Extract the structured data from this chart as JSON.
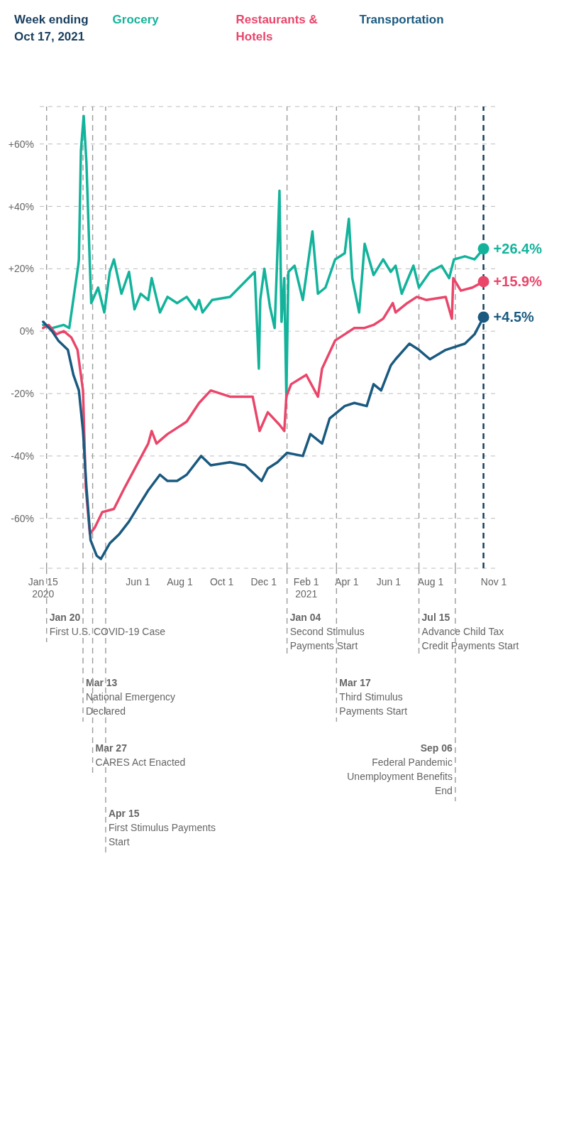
{
  "chart_data": {
    "type": "line",
    "annotations": [
      "Week ending\nOct 17, 2021"
    ],
    "xlim": [
      "2020-01-10",
      "2021-11-05"
    ],
    "xticks": [
      {
        "value": "2020-01-15",
        "label": "Jan 15\n2020"
      },
      {
        "value": "2020-06-01",
        "label": "Jun 1"
      },
      {
        "value": "2020-08-01",
        "label": "Aug 1"
      },
      {
        "value": "2020-10-01",
        "label": "Oct 1"
      },
      {
        "value": "2020-12-01",
        "label": "Dec 1"
      },
      {
        "value": "2021-02-01",
        "label": "Feb 1\n2021"
      },
      {
        "value": "2021-04-01",
        "label": "Apr 1"
      },
      {
        "value": "2021-06-01",
        "label": "Jun 1"
      },
      {
        "value": "2021-08-01",
        "label": "Aug 1"
      },
      {
        "value": "2021-11-01",
        "label": "Nov 1"
      }
    ],
    "ylim": [
      -76,
      72
    ],
    "yticks": [
      {
        "value": 60,
        "label": "+60%"
      },
      {
        "value": 40,
        "label": "+40%"
      },
      {
        "value": 20,
        "label": "+20%"
      },
      {
        "value": 0,
        "label": "0%"
      },
      {
        "value": -20,
        "label": "-20%"
      },
      {
        "value": -40,
        "label": "-40%"
      },
      {
        "value": -60,
        "label": "-60%"
      }
    ],
    "grid": "y",
    "series": [
      {
        "name": "Grocery",
        "color": "#13b39b",
        "x": [
          "2020-01-15",
          "2020-01-28",
          "2020-02-14",
          "2020-02-22",
          "2020-03-06",
          "2020-03-07",
          "2020-03-10",
          "2020-03-14",
          "2020-03-18",
          "2020-03-23",
          "2020-03-25",
          "2020-04-04",
          "2020-04-13",
          "2020-04-21",
          "2020-04-27",
          "2020-05-08",
          "2020-05-19",
          "2020-05-27",
          "2020-06-05",
          "2020-06-16",
          "2020-06-21",
          "2020-07-03",
          "2020-07-14",
          "2020-07-28",
          "2020-08-11",
          "2020-08-24",
          "2020-08-29",
          "2020-09-03",
          "2020-09-17",
          "2020-10-13",
          "2020-11-09",
          "2020-11-18",
          "2020-11-24",
          "2020-11-26",
          "2020-12-02",
          "2020-12-10",
          "2020-12-17",
          "2020-12-20",
          "2020-12-24",
          "2020-12-27",
          "2020-12-31",
          "2021-01-03",
          "2021-01-06",
          "2021-01-15",
          "2021-01-27",
          "2021-02-10",
          "2021-02-18",
          "2021-03-01",
          "2021-03-15",
          "2021-03-29",
          "2021-04-04",
          "2021-04-09",
          "2021-04-19",
          "2021-04-27",
          "2021-05-10",
          "2021-05-24",
          "2021-06-04",
          "2021-06-11",
          "2021-06-20",
          "2021-07-07",
          "2021-07-15",
          "2021-07-31",
          "2021-08-17",
          "2021-08-28",
          "2021-09-04",
          "2021-09-20",
          "2021-10-04",
          "2021-10-17"
        ],
        "values": [
          2,
          1,
          2,
          1,
          21,
          23,
          58,
          69,
          54,
          21,
          9,
          14,
          6,
          19,
          23,
          12,
          19,
          7,
          12,
          10,
          17,
          6,
          11,
          9,
          11,
          7,
          10,
          6,
          10,
          11,
          17,
          19,
          -12,
          10,
          20,
          8,
          1,
          19,
          45,
          3,
          17,
          -21,
          19,
          21,
          10,
          32,
          12,
          14,
          23,
          25,
          36,
          17,
          6,
          28,
          18,
          23,
          19,
          21,
          12,
          21,
          14,
          19,
          21,
          17,
          23,
          24,
          23,
          26.4
        ],
        "value_labels": [
          null,
          null,
          null,
          null,
          null,
          null,
          null,
          null,
          null,
          null,
          null,
          null,
          null,
          null,
          null,
          null,
          null,
          null,
          null,
          null,
          null,
          null,
          null,
          null,
          null,
          null,
          null,
          null,
          null,
          null,
          null,
          null,
          null,
          null,
          null,
          null,
          null,
          null,
          null,
          null,
          null,
          null,
          null,
          null,
          null,
          null,
          null,
          null,
          null,
          null,
          null,
          null,
          null,
          null,
          null,
          null,
          null,
          null,
          null,
          null,
          null,
          null,
          null,
          null,
          null,
          null,
          null,
          "+26.4%"
        ]
      },
      {
        "name": "Restaurants & Hotels",
        "color": "#e9466a",
        "x": [
          "2020-01-15",
          "2020-01-23",
          "2020-02-03",
          "2020-02-14",
          "2020-02-25",
          "2020-03-05",
          "2020-03-13",
          "2020-03-17",
          "2020-03-23",
          "2020-03-30",
          "2020-04-10",
          "2020-04-27",
          "2020-05-13",
          "2020-05-30",
          "2020-06-16",
          "2020-06-21",
          "2020-06-28",
          "2020-07-14",
          "2020-08-11",
          "2020-08-29",
          "2020-09-15",
          "2020-10-13",
          "2020-11-15",
          "2020-11-25",
          "2020-12-07",
          "2020-12-24",
          "2020-12-31",
          "2021-01-03",
          "2021-01-10",
          "2021-02-01",
          "2021-02-18",
          "2021-02-24",
          "2021-03-15",
          "2021-03-29",
          "2021-04-12",
          "2021-04-26",
          "2021-05-10",
          "2021-05-24",
          "2021-06-07",
          "2021-06-11",
          "2021-06-28",
          "2021-07-12",
          "2021-07-26",
          "2021-08-23",
          "2021-09-01",
          "2021-09-03",
          "2021-09-14",
          "2021-10-01",
          "2021-10-17"
        ],
        "values": [
          1,
          2,
          -1,
          0,
          -2,
          -6,
          -19,
          -50,
          -65,
          -63,
          -58,
          -57,
          -50,
          -43,
          -36,
          -32,
          -36,
          -33,
          -29,
          -23,
          -19,
          -21,
          -21,
          -32,
          -26,
          -30,
          -32,
          -21,
          -17,
          -14,
          -21,
          -12,
          -3,
          -1,
          1,
          1,
          2,
          4,
          9,
          6,
          9,
          11,
          10,
          11,
          4,
          17,
          13,
          14,
          15.9
        ],
        "value_labels": [
          null,
          null,
          null,
          null,
          null,
          null,
          null,
          null,
          null,
          null,
          null,
          null,
          null,
          null,
          null,
          null,
          null,
          null,
          null,
          null,
          null,
          null,
          null,
          null,
          null,
          null,
          null,
          null,
          null,
          null,
          null,
          null,
          null,
          null,
          null,
          null,
          null,
          null,
          null,
          null,
          null,
          null,
          null,
          null,
          null,
          null,
          null,
          null,
          "+15.9%"
        ]
      },
      {
        "name": "Transportation",
        "color": "#1a5a80",
        "x": [
          "2020-01-15",
          "2020-01-28",
          "2020-02-06",
          "2020-02-20",
          "2020-02-28",
          "2020-03-07",
          "2020-03-13",
          "2020-03-18",
          "2020-03-24",
          "2020-04-02",
          "2020-04-08",
          "2020-04-21",
          "2020-05-05",
          "2020-05-19",
          "2020-05-30",
          "2020-06-16",
          "2020-07-03",
          "2020-07-14",
          "2020-07-28",
          "2020-08-11",
          "2020-09-01",
          "2020-09-15",
          "2020-10-13",
          "2020-11-04",
          "2020-11-28",
          "2020-12-07",
          "2020-12-21",
          "2021-01-04",
          "2021-01-27",
          "2021-02-07",
          "2021-02-24",
          "2021-03-07",
          "2021-03-29",
          "2021-04-12",
          "2021-04-30",
          "2021-05-10",
          "2021-05-21",
          "2021-06-04",
          "2021-06-11",
          "2021-07-01",
          "2021-07-15",
          "2021-07-31",
          "2021-08-23",
          "2021-09-20",
          "2021-10-04",
          "2021-10-17"
        ],
        "values": [
          3,
          0,
          -3,
          -6,
          -14,
          -19,
          -32,
          -50,
          -67,
          -72,
          -73,
          -68,
          -65,
          -61,
          -57,
          -51,
          -46,
          -48,
          -48,
          -46,
          -40,
          -43,
          -42,
          -43,
          -48,
          -44,
          -42,
          -39,
          -40,
          -33,
          -36,
          -28,
          -24,
          -23,
          -24,
          -17,
          -19,
          -11,
          -9,
          -4,
          -6,
          -9,
          -6,
          -4,
          -1,
          4.5
        ],
        "value_labels": [
          null,
          null,
          null,
          null,
          null,
          null,
          null,
          null,
          null,
          null,
          null,
          null,
          null,
          null,
          null,
          null,
          null,
          null,
          null,
          null,
          null,
          null,
          null,
          null,
          null,
          null,
          null,
          null,
          null,
          null,
          null,
          null,
          null,
          null,
          null,
          null,
          null,
          null,
          null,
          null,
          null,
          null,
          null,
          null,
          null,
          "+4.5%"
        ]
      }
    ],
    "ref_lines": [
      {
        "axis": "x",
        "value": "2020-01-20",
        "label": "Jan 20\nFirst U.S. COVID-19 Case",
        "color": "#9a9a9a",
        "line_style": "dashed"
      },
      {
        "axis": "x",
        "value": "2020-03-13",
        "label": "Mar 13\nNational Emergency\nDeclared",
        "color": "#9a9a9a",
        "line_style": "dashed"
      },
      {
        "axis": "x",
        "value": "2020-03-27",
        "label": "Mar 27\nCARES Act Enacted",
        "color": "#9a9a9a",
        "line_style": "dashed"
      },
      {
        "axis": "x",
        "value": "2020-04-15",
        "label": "Apr 15\nFirst Stimulus Payments\nStart",
        "color": "#9a9a9a",
        "line_style": "dashed"
      },
      {
        "axis": "x",
        "value": "2021-01-04",
        "label": "Jan 04\nSecond Stimulus\nPayments Start",
        "color": "#9a9a9a",
        "line_style": "dashed"
      },
      {
        "axis": "x",
        "value": "2021-03-17",
        "label": "Mar 17\nThird Stimulus\nPayments Start",
        "color": "#9a9a9a",
        "line_style": "dashed"
      },
      {
        "axis": "x",
        "value": "2021-07-15",
        "label": "Jul 15\nAdvance Child Tax\nCredit Payments Start",
        "color": "#9a9a9a",
        "line_style": "dashed"
      },
      {
        "axis": "x",
        "value": "2021-09-06",
        "label": "Sep 06\nFederal Pandemic\nUnemployment Benefits\nEnd",
        "color": "#9a9a9a",
        "line_style": "dashed"
      },
      {
        "axis": "x",
        "value": "2021-10-17",
        "color": "#16405e",
        "line_style": "dashed"
      }
    ]
  }
}
